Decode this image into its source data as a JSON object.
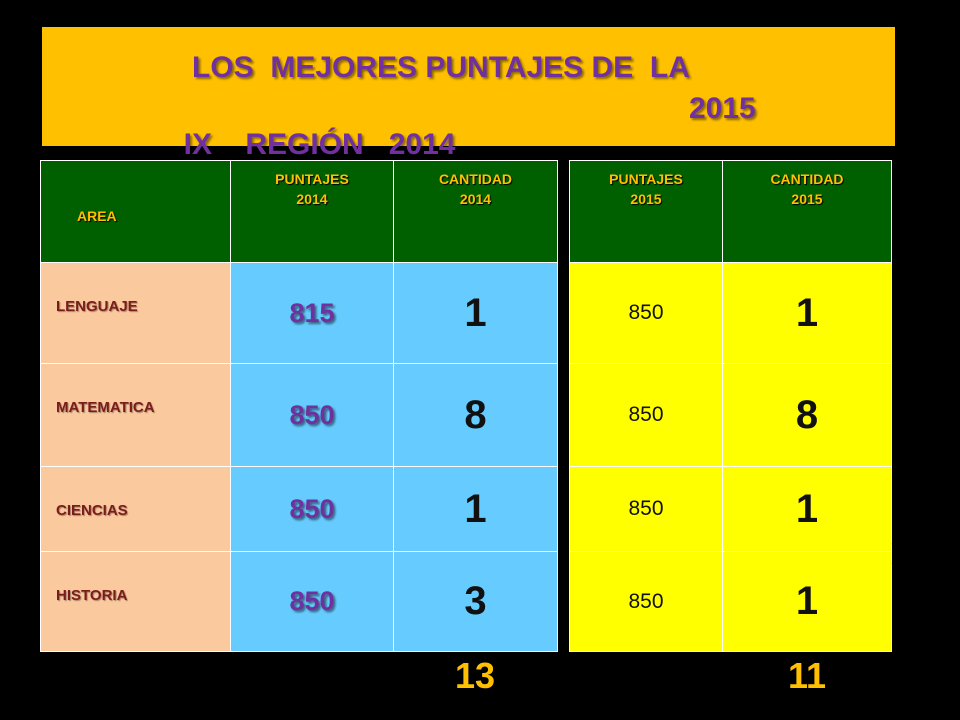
{
  "title": {
    "line1": "LOS  MEJORES PUNTAJES DE  LA",
    "line2": "IX    REGIÓN   2014",
    "line2_year": "2015"
  },
  "headers_left": {
    "area": "AREA",
    "puntajes_2014_l1": "PUNTAJES",
    "puntajes_2014_l2": "2014",
    "cantidad_2014_l1": "CANTIDAD",
    "cantidad_2014_l2": "2014"
  },
  "headers_right": {
    "puntajes_2015_l1": "PUNTAJES",
    "puntajes_2015_l2": "2015",
    "cantidad_2015_l1": "CANTIDAD",
    "cantidad_2015_l2": "2015"
  },
  "rows": [
    {
      "area": "LENGUAJE",
      "puntaje_2014": "815",
      "cantidad_2014": "1",
      "puntaje_2015": "850",
      "cantidad_2015": "1"
    },
    {
      "area": "MATEMATICA",
      "puntaje_2014": "850",
      "cantidad_2014": "8",
      "puntaje_2015": "850",
      "cantidad_2015": "8"
    },
    {
      "area": "CIENCIAS",
      "puntaje_2014": "850",
      "cantidad_2014": "1",
      "puntaje_2015": "850",
      "cantidad_2015": "1"
    },
    {
      "area": "HISTORIA",
      "puntaje_2014": "850",
      "cantidad_2014": "3",
      "puntaje_2015": "850",
      "cantidad_2015": "1"
    }
  ],
  "totals": {
    "total_2014": "13",
    "total_2015": "11"
  },
  "colors": {
    "banner": "#ffc000",
    "title_text": "#7030a0",
    "header_bg": "#006000",
    "area_bg": "#fbc99e",
    "col_2014_bg": "#66ccff",
    "col_2015_bg": "#ffff00"
  }
}
